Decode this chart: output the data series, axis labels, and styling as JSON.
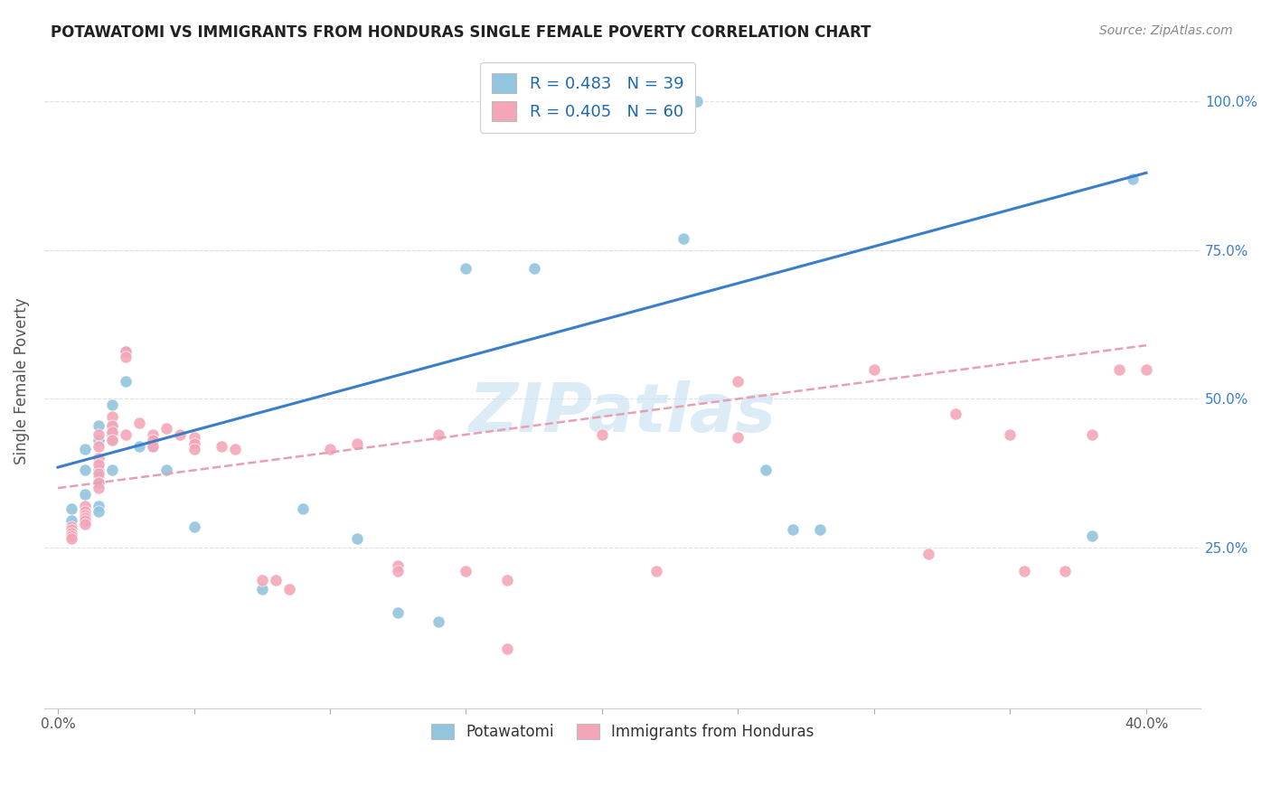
{
  "title": "POTAWATOMI VS IMMIGRANTS FROM HONDURAS SINGLE FEMALE POVERTY CORRELATION CHART",
  "source": "Source: ZipAtlas.com",
  "ylabel": "Single Female Poverty",
  "legend1_label": "R = 0.483   N = 39",
  "legend2_label": "R = 0.405   N = 60",
  "legend_xlabel1": "Potawatomi",
  "legend_xlabel2": "Immigrants from Honduras",
  "blue_color": "#92c5de",
  "pink_color": "#f4a6b8",
  "blue_line_color": "#3a7dc9",
  "pink_line_color": "#e8a0b0",
  "blue_scatter": [
    [
      0.5,
      31.5
    ],
    [
      0.5,
      29.5
    ],
    [
      1.0,
      41.5
    ],
    [
      1.0,
      38.0
    ],
    [
      1.0,
      34.0
    ],
    [
      1.5,
      45.5
    ],
    [
      1.5,
      43.0
    ],
    [
      1.5,
      38.0
    ],
    [
      1.5,
      37.0
    ],
    [
      1.5,
      36.0
    ],
    [
      1.5,
      32.0
    ],
    [
      1.5,
      31.0
    ],
    [
      2.0,
      49.0
    ],
    [
      2.0,
      45.5
    ],
    [
      2.0,
      44.0
    ],
    [
      2.0,
      43.0
    ],
    [
      2.0,
      38.0
    ],
    [
      2.5,
      58.0
    ],
    [
      2.5,
      53.0
    ],
    [
      3.0,
      42.0
    ],
    [
      3.5,
      42.0
    ],
    [
      4.0,
      38.0
    ],
    [
      5.0,
      28.5
    ],
    [
      7.5,
      18.0
    ],
    [
      9.0,
      31.5
    ],
    [
      11.0,
      26.5
    ],
    [
      12.5,
      14.0
    ],
    [
      14.0,
      12.5
    ],
    [
      15.0,
      72.0
    ],
    [
      17.5,
      72.0
    ],
    [
      20.0,
      100.0
    ],
    [
      22.0,
      100.0
    ],
    [
      23.0,
      77.0
    ],
    [
      23.5,
      100.0
    ],
    [
      26.0,
      38.0
    ],
    [
      27.0,
      28.0
    ],
    [
      28.0,
      28.0
    ],
    [
      38.0,
      27.0
    ],
    [
      39.5,
      87.0
    ]
  ],
  "pink_scatter": [
    [
      0.5,
      28.5
    ],
    [
      0.5,
      28.0
    ],
    [
      0.5,
      27.5
    ],
    [
      0.5,
      27.0
    ],
    [
      0.5,
      26.5
    ],
    [
      1.0,
      32.0
    ],
    [
      1.0,
      31.0
    ],
    [
      1.0,
      30.5
    ],
    [
      1.0,
      30.0
    ],
    [
      1.0,
      29.5
    ],
    [
      1.0,
      29.0
    ],
    [
      1.5,
      44.0
    ],
    [
      1.5,
      42.0
    ],
    [
      1.5,
      40.0
    ],
    [
      1.5,
      39.0
    ],
    [
      1.5,
      37.5
    ],
    [
      1.5,
      36.0
    ],
    [
      1.5,
      35.0
    ],
    [
      2.0,
      47.0
    ],
    [
      2.0,
      45.5
    ],
    [
      2.0,
      44.5
    ],
    [
      2.0,
      43.0
    ],
    [
      2.5,
      58.0
    ],
    [
      2.5,
      57.0
    ],
    [
      2.5,
      44.0
    ],
    [
      3.0,
      46.0
    ],
    [
      3.5,
      44.0
    ],
    [
      3.5,
      43.0
    ],
    [
      3.5,
      42.0
    ],
    [
      4.0,
      45.0
    ],
    [
      4.5,
      44.0
    ],
    [
      5.0,
      43.5
    ],
    [
      5.0,
      42.5
    ],
    [
      5.0,
      41.5
    ],
    [
      6.0,
      42.0
    ],
    [
      6.5,
      41.5
    ],
    [
      7.5,
      19.5
    ],
    [
      8.0,
      19.5
    ],
    [
      8.5,
      18.0
    ],
    [
      10.0,
      41.5
    ],
    [
      11.0,
      42.5
    ],
    [
      12.5,
      22.0
    ],
    [
      12.5,
      21.0
    ],
    [
      14.0,
      44.0
    ],
    [
      15.0,
      21.0
    ],
    [
      16.5,
      19.5
    ],
    [
      16.5,
      8.0
    ],
    [
      20.0,
      44.0
    ],
    [
      22.0,
      21.0
    ],
    [
      25.0,
      43.5
    ],
    [
      25.0,
      53.0
    ],
    [
      30.0,
      55.0
    ],
    [
      32.0,
      24.0
    ],
    [
      33.0,
      47.5
    ],
    [
      35.0,
      44.0
    ],
    [
      35.5,
      21.0
    ],
    [
      37.0,
      21.0
    ],
    [
      38.0,
      44.0
    ],
    [
      39.0,
      55.0
    ],
    [
      40.0,
      55.0
    ]
  ],
  "xlim": [
    -0.5,
    42.0
  ],
  "ylim": [
    -2.0,
    108.0
  ],
  "xtick_vals": [
    0,
    5,
    10,
    15,
    20,
    25,
    30,
    35,
    40
  ],
  "xtick_labels_show": [
    "0.0%",
    "",
    "",
    "",
    "",
    "",
    "",
    "",
    "40.0%"
  ],
  "ytick_vals": [
    25,
    50,
    75,
    100
  ],
  "ytick_labels": [
    "25.0%",
    "50.0%",
    "75.0%",
    "100.0%"
  ],
  "blue_line_x": [
    0,
    40
  ],
  "blue_line_y": [
    38.5,
    88.0
  ],
  "pink_line_x": [
    0,
    40
  ],
  "pink_line_y": [
    35.0,
    59.0
  ],
  "watermark": "ZIPatlas",
  "watermark_color": "#cce4f5",
  "grid_color": "#e0e0e0",
  "title_fontsize": 12,
  "source_fontsize": 10
}
